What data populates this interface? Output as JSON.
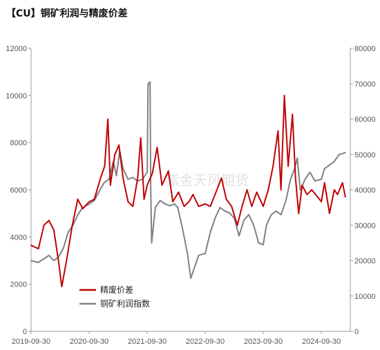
{
  "title": "【CU】铜矿利润与精废价差",
  "watermark": "紫金天风期货",
  "colors": {
    "series1": "#c00000",
    "series2": "#808080",
    "axis": "#999999"
  },
  "chart_data": {
    "type": "line",
    "title": "【CU】铜矿利润与精废价差",
    "x_tick_labels": [
      "2019-09-30",
      "2020-09-30",
      "2021-09-30",
      "2022-09-30",
      "2023-09-30",
      "2024-09-30"
    ],
    "y_left": {
      "range": [
        0,
        12000
      ],
      "ticks": [
        0,
        2000,
        4000,
        6000,
        8000,
        10000,
        12000
      ]
    },
    "y_right": {
      "range": [
        0,
        80000
      ],
      "ticks": [
        0,
        10000,
        20000,
        30000,
        40000,
        50000,
        60000,
        70000,
        80000
      ]
    },
    "legend_placement": "lower-left",
    "grid": false,
    "series": [
      {
        "name": "精废价差",
        "axis": "left",
        "color": "#c00000",
        "points": [
          [
            "2019-09-30",
            3650
          ],
          [
            "2019-11-15",
            3500
          ],
          [
            "2019-12-20",
            4500
          ],
          [
            "2020-01-20",
            4700
          ],
          [
            "2020-02-20",
            4300
          ],
          [
            "2020-03-20",
            3000
          ],
          [
            "2020-04-10",
            1900
          ],
          [
            "2020-05-10",
            3000
          ],
          [
            "2020-06-15",
            4500
          ],
          [
            "2020-07-20",
            5600
          ],
          [
            "2020-08-20",
            5200
          ],
          [
            "2020-09-30",
            5500
          ],
          [
            "2020-11-01",
            5600
          ],
          [
            "2020-12-10",
            6500
          ],
          [
            "2021-01-05",
            7000
          ],
          [
            "2021-01-25",
            9000
          ],
          [
            "2021-02-10",
            6200
          ],
          [
            "2021-03-10",
            7500
          ],
          [
            "2021-04-05",
            7900
          ],
          [
            "2021-05-01",
            6500
          ],
          [
            "2021-06-01",
            5500
          ],
          [
            "2021-07-01",
            5300
          ],
          [
            "2021-08-01",
            6500
          ],
          [
            "2021-08-20",
            8200
          ],
          [
            "2021-09-10",
            5600
          ],
          [
            "2021-09-30",
            6200
          ],
          [
            "2021-11-01",
            6700
          ],
          [
            "2021-12-01",
            7800
          ],
          [
            "2022-01-01",
            6200
          ],
          [
            "2022-02-10",
            6800
          ],
          [
            "2022-03-10",
            5500
          ],
          [
            "2022-04-15",
            5900
          ],
          [
            "2022-05-20",
            5300
          ],
          [
            "2022-06-20",
            5500
          ],
          [
            "2022-07-15",
            5800
          ],
          [
            "2022-08-20",
            5300
          ],
          [
            "2022-09-30",
            5400
          ],
          [
            "2022-11-01",
            5300
          ],
          [
            "2022-12-01",
            5800
          ],
          [
            "2023-01-10",
            6500
          ],
          [
            "2023-02-10",
            5600
          ],
          [
            "2023-03-15",
            5300
          ],
          [
            "2023-04-20",
            4500
          ],
          [
            "2023-05-20",
            5300
          ],
          [
            "2023-06-20",
            6000
          ],
          [
            "2023-07-20",
            5300
          ],
          [
            "2023-08-20",
            5900
          ],
          [
            "2023-09-30",
            5300
          ],
          [
            "2023-11-01",
            6000
          ],
          [
            "2023-12-01",
            7000
          ],
          [
            "2024-01-01",
            8500
          ],
          [
            "2024-01-20",
            6000
          ],
          [
            "2024-02-10",
            10000
          ],
          [
            "2024-03-05",
            7000
          ],
          [
            "2024-04-01",
            9200
          ],
          [
            "2024-04-20",
            6500
          ],
          [
            "2024-05-10",
            5000
          ],
          [
            "2024-06-01",
            6200
          ],
          [
            "2024-07-01",
            5800
          ],
          [
            "2024-08-01",
            6000
          ],
          [
            "2024-09-30",
            5500
          ],
          [
            "2024-10-20",
            6300
          ],
          [
            "2024-11-20",
            5000
          ],
          [
            "2024-12-20",
            6000
          ],
          [
            "2025-01-10",
            5800
          ],
          [
            "2025-02-10",
            6300
          ],
          [
            "2025-02-28",
            5700
          ]
        ]
      },
      {
        "name": "铜矿利润指数",
        "axis": "right",
        "color": "#808080",
        "points": [
          [
            "2019-09-30",
            20000
          ],
          [
            "2019-11-15",
            19500
          ],
          [
            "2019-12-20",
            20500
          ],
          [
            "2020-01-20",
            21500
          ],
          [
            "2020-02-20",
            20000
          ],
          [
            "2020-03-20",
            21000
          ],
          [
            "2020-04-20",
            23500
          ],
          [
            "2020-05-20",
            28000
          ],
          [
            "2020-06-20",
            30000
          ],
          [
            "2020-07-20",
            33000
          ],
          [
            "2020-08-20",
            35000
          ],
          [
            "2020-09-30",
            36000
          ],
          [
            "2020-11-01",
            37000
          ],
          [
            "2020-12-01",
            39500
          ],
          [
            "2021-01-01",
            42000
          ],
          [
            "2021-02-01",
            43000
          ],
          [
            "2021-03-01",
            48000
          ],
          [
            "2021-03-20",
            44000
          ],
          [
            "2021-04-10",
            51000
          ],
          [
            "2021-05-01",
            46000
          ],
          [
            "2021-06-01",
            43000
          ],
          [
            "2021-07-01",
            43500
          ],
          [
            "2021-08-01",
            42500
          ],
          [
            "2021-09-01",
            43000
          ],
          [
            "2021-09-30",
            45000
          ],
          [
            "2021-10-05",
            70000
          ],
          [
            "2021-10-18",
            70500
          ],
          [
            "2021-10-22",
            40000
          ],
          [
            "2021-10-28",
            25000
          ],
          [
            "2021-11-20",
            35000
          ],
          [
            "2021-12-20",
            37000
          ],
          [
            "2022-01-20",
            36000
          ],
          [
            "2022-02-20",
            35500
          ],
          [
            "2022-03-20",
            36000
          ],
          [
            "2022-04-10",
            35000
          ],
          [
            "2022-05-10",
            29000
          ],
          [
            "2022-06-10",
            22000
          ],
          [
            "2022-07-01",
            15000
          ],
          [
            "2022-07-20",
            17500
          ],
          [
            "2022-08-20",
            21500
          ],
          [
            "2022-09-30",
            22000
          ],
          [
            "2022-11-01",
            28000
          ],
          [
            "2022-12-01",
            32000
          ],
          [
            "2023-01-01",
            35000
          ],
          [
            "2023-02-01",
            34000
          ],
          [
            "2023-03-01",
            33500
          ],
          [
            "2023-04-01",
            32000
          ],
          [
            "2023-05-01",
            27000
          ],
          [
            "2023-06-01",
            31500
          ],
          [
            "2023-07-01",
            33000
          ],
          [
            "2023-08-01",
            30000
          ],
          [
            "2023-09-01",
            25000
          ],
          [
            "2023-09-30",
            24500
          ],
          [
            "2023-10-20",
            30000
          ],
          [
            "2023-11-20",
            33000
          ],
          [
            "2023-12-20",
            34000
          ],
          [
            "2024-01-20",
            33000
          ],
          [
            "2024-02-20",
            37000
          ],
          [
            "2024-03-20",
            43000
          ],
          [
            "2024-04-15",
            46000
          ],
          [
            "2024-05-01",
            49000
          ],
          [
            "2024-05-20",
            40000
          ],
          [
            "2024-06-20",
            43000
          ],
          [
            "2024-07-20",
            45000
          ],
          [
            "2024-08-20",
            42500
          ],
          [
            "2024-09-30",
            43000
          ],
          [
            "2024-10-20",
            46000
          ],
          [
            "2024-11-20",
            47000
          ],
          [
            "2024-12-20",
            48000
          ],
          [
            "2025-01-20",
            50000
          ],
          [
            "2025-02-28",
            50500
          ]
        ]
      }
    ]
  }
}
